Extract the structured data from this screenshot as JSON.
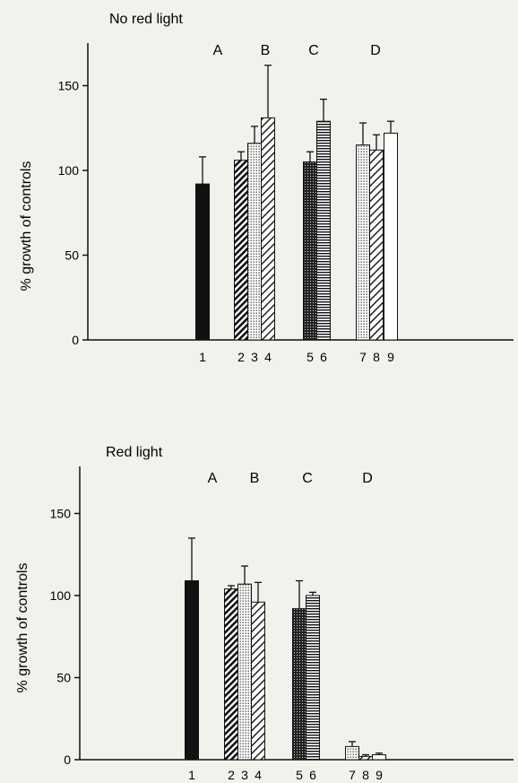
{
  "chart_data": [
    {
      "type": "bar",
      "title": "No red light",
      "ylabel": "% growth of controls",
      "ylim": [
        0,
        175
      ],
      "yticks": [
        0,
        50,
        100,
        150
      ],
      "groups": [
        {
          "label": "A",
          "categories": [
            "1"
          ]
        },
        {
          "label": "B",
          "categories": [
            "2",
            "3",
            "4"
          ]
        },
        {
          "label": "C",
          "categories": [
            "5",
            "6"
          ]
        },
        {
          "label": "D",
          "categories": [
            "7",
            "8",
            "9"
          ]
        }
      ],
      "bars": [
        {
          "category": "1",
          "value": 92,
          "error": 16,
          "fill": "solid-black"
        },
        {
          "category": "2",
          "value": 106,
          "error": 5,
          "fill": "diagonal-hatch"
        },
        {
          "category": "3",
          "value": 116,
          "error": 10,
          "fill": "dotted"
        },
        {
          "category": "4",
          "value": 131,
          "error": 31,
          "fill": "light-diagonal-hatch"
        },
        {
          "category": "5",
          "value": 105,
          "error": 6,
          "fill": "crosshatch"
        },
        {
          "category": "6",
          "value": 129,
          "error": 13,
          "fill": "horizontal-lines"
        },
        {
          "category": "7",
          "value": 115,
          "error": 13,
          "fill": "dotted"
        },
        {
          "category": "8",
          "value": 112,
          "error": 9,
          "fill": "light-diagonal-hatch"
        },
        {
          "category": "9",
          "value": 122,
          "error": 7,
          "fill": "white"
        }
      ]
    },
    {
      "type": "bar",
      "title": "Red light",
      "ylabel": "% growth of controls",
      "ylim": [
        0,
        175
      ],
      "yticks": [
        0,
        50,
        100,
        150
      ],
      "groups": [
        {
          "label": "A",
          "categories": [
            "1"
          ]
        },
        {
          "label": "B",
          "categories": [
            "2",
            "3",
            "4"
          ]
        },
        {
          "label": "C",
          "categories": [
            "5",
            "6"
          ]
        },
        {
          "label": "D",
          "categories": [
            "7",
            "8",
            "9"
          ]
        }
      ],
      "bars": [
        {
          "category": "1",
          "value": 109,
          "error": 26,
          "fill": "solid-black"
        },
        {
          "category": "2",
          "value": 104,
          "error": 2,
          "fill": "diagonal-hatch"
        },
        {
          "category": "3",
          "value": 107,
          "error": 11,
          "fill": "dotted"
        },
        {
          "category": "4",
          "value": 96,
          "error": 12,
          "fill": "light-diagonal-hatch"
        },
        {
          "category": "5",
          "value": 92,
          "error": 17,
          "fill": "crosshatch"
        },
        {
          "category": "6",
          "value": 100,
          "error": 2,
          "fill": "horizontal-lines"
        },
        {
          "category": "7",
          "value": 8,
          "error": 3,
          "fill": "dotted"
        },
        {
          "category": "8",
          "value": 2,
          "error": 1,
          "fill": "light-diagonal-hatch"
        },
        {
          "category": "9",
          "value": 3,
          "error": 1,
          "fill": "white"
        }
      ]
    }
  ]
}
